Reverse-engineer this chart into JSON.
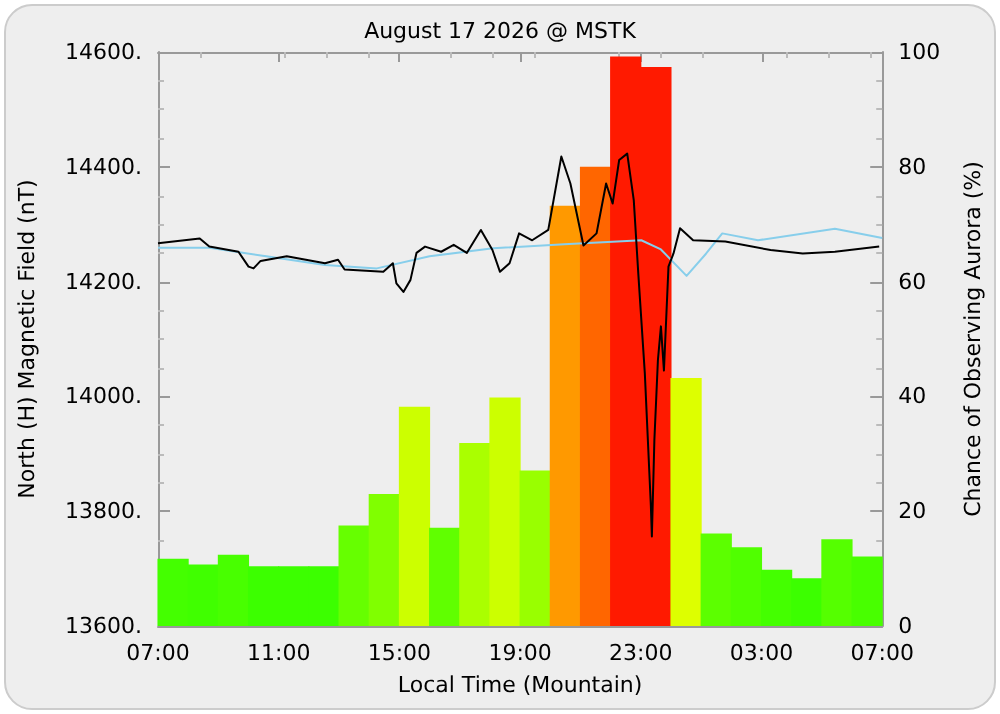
{
  "chart_data": {
    "type": "line",
    "title": "August 17 2026 @ MSTK",
    "xlabel": "Local Time (Mountain)",
    "ylabel": "North (H) Magnetic Field (nT)",
    "y2label": "Chance of Observing Aurora (%)",
    "xlim": [
      "2026-08-17T07:00",
      "2026-08-18T07:00"
    ],
    "xticks": [
      {
        "value": "2026-08-17T07:00",
        "label": "07:00"
      },
      {
        "value": "2026-08-17T11:00",
        "label": "11:00"
      },
      {
        "value": "2026-08-17T15:00",
        "label": "15:00"
      },
      {
        "value": "2026-08-17T19:00",
        "label": "19:00"
      },
      {
        "value": "2026-08-17T23:00",
        "label": "23:00"
      },
      {
        "value": "2026-08-18T03:00",
        "label": "03:00"
      },
      {
        "value": "2026-08-18T07:00",
        "label": "07:00"
      }
    ],
    "ylim": [
      13600,
      14600
    ],
    "yticks": [
      {
        "value": 13600,
        "label": "13600."
      },
      {
        "value": 13800,
        "label": "13800."
      },
      {
        "value": 14000,
        "label": "14000."
      },
      {
        "value": 14200,
        "label": "14200."
      },
      {
        "value": 14400,
        "label": "14400."
      },
      {
        "value": 14600,
        "label": "14600."
      }
    ],
    "y2lim": [
      0,
      100
    ],
    "y2ticks": [
      0,
      20,
      40,
      60,
      80,
      100
    ],
    "grid": false,
    "marker": "none",
    "line_style": "solid",
    "series": [
      {
        "type": "bar",
        "axis": "y2",
        "x": [
          "2026-08-17T07:30",
          "2026-08-17T08:30",
          "2026-08-17T09:30",
          "2026-08-17T10:30",
          "2026-08-17T11:30",
          "2026-08-17T12:30",
          "2026-08-17T13:30",
          "2026-08-17T14:30",
          "2026-08-17T15:30",
          "2026-08-17T16:30",
          "2026-08-17T17:30",
          "2026-08-17T18:30",
          "2026-08-17T19:30",
          "2026-08-17T20:30",
          "2026-08-17T21:30",
          "2026-08-17T22:30",
          "2026-08-17T23:30",
          "2026-08-18T00:30",
          "2026-08-18T01:30",
          "2026-08-18T02:30",
          "2026-08-18T03:30",
          "2026-08-18T04:30",
          "2026-08-18T05:30",
          "2026-08-18T06:30"
        ],
        "values": [
          11.7,
          10.7,
          12.4,
          10.4,
          10.4,
          10.4,
          17.5,
          23,
          38.2,
          17.1,
          31.9,
          39.8,
          27.1,
          73.2,
          80,
          99.2,
          97.4,
          43.2,
          16.1,
          13.7,
          9.8,
          8.3,
          15.1,
          12.1
        ],
        "colors": [
          "#44ff00",
          "#40ff00",
          "#48ff00",
          "#3cff00",
          "#3cff00",
          "#3cff00",
          "#66ff00",
          "#80ff00",
          "#ccff00",
          "#60ff00",
          "#aaff00",
          "#ccff00",
          "#99ff00",
          "#ff9900",
          "#ff6600",
          "#ff1a00",
          "#ff1a00",
          "#ddff00",
          "#5cff00",
          "#50ff00",
          "#44ff00",
          "#3cff00",
          "#55ff00",
          "#48ff00"
        ]
      },
      {
        "color": "#87ceeb",
        "x": [
          "2026-08-17T07:00",
          "2026-08-17T08:42",
          "2026-08-17T12:32",
          "2026-08-17T14:15",
          "2026-08-17T16:00",
          "2026-08-17T18:06",
          "2026-08-17T20:28",
          "2026-08-17T23:01",
          "2026-08-17T23:40",
          "2026-08-18T00:31",
          "2026-08-18T01:10",
          "2026-08-18T01:42",
          "2026-08-18T02:53",
          "2026-08-18T05:26",
          "2026-08-18T07:00"
        ],
        "values": [
          14259,
          14259,
          14229,
          14223,
          14244,
          14258,
          14265,
          14272,
          14256,
          14210,
          14249,
          14284,
          14272,
          14292,
          14276
        ]
      },
      {
        "color": "#000000",
        "x": [
          "2026-08-17T07:00",
          "2026-08-17T08:23",
          "2026-08-17T08:42",
          "2026-08-17T09:40",
          "2026-08-17T10:00",
          "2026-08-17T10:10",
          "2026-08-17T10:24",
          "2026-08-17T11:16",
          "2026-08-17T12:32",
          "2026-08-17T12:58",
          "2026-08-17T13:11",
          "2026-08-17T14:28",
          "2026-08-17T14:47",
          "2026-08-17T14:54",
          "2026-08-17T15:08",
          "2026-08-17T15:22",
          "2026-08-17T15:34",
          "2026-08-17T15:51",
          "2026-08-17T16:23",
          "2026-08-17T16:48",
          "2026-08-17T17:14",
          "2026-08-17T17:42",
          "2026-08-17T18:05",
          "2026-08-17T18:20",
          "2026-08-17T18:39",
          "2026-08-17T18:58",
          "2026-08-17T19:24",
          "2026-08-17T19:56",
          "2026-08-17T20:22",
          "2026-08-17T20:40",
          "2026-08-17T21:06",
          "2026-08-17T21:32",
          "2026-08-17T21:51",
          "2026-08-17T22:04",
          "2026-08-17T22:17",
          "2026-08-17T22:33",
          "2026-08-17T22:46",
          "2026-08-17T22:55",
          "2026-08-17T23:08",
          "2026-08-17T23:20",
          "2026-08-17T23:22",
          "2026-08-17T23:27",
          "2026-08-17T23:34",
          "2026-08-17T23:40",
          "2026-08-17T23:46",
          "2026-08-17T23:55",
          "2026-08-18T00:05",
          "2026-08-18T00:18",
          "2026-08-18T00:44",
          "2026-08-18T01:48",
          "2026-08-18T03:18",
          "2026-08-18T04:22",
          "2026-08-18T05:26",
          "2026-08-18T06:54"
        ],
        "values": [
          14267,
          14275,
          14261,
          14252,
          14226,
          14223,
          14236,
          14244,
          14232,
          14238,
          14221,
          14217,
          14232,
          14197,
          14182,
          14203,
          14250,
          14261,
          14252,
          14264,
          14250,
          14290,
          14255,
          14217,
          14232,
          14284,
          14272,
          14290,
          14418,
          14371,
          14263,
          14284,
          14371,
          14336,
          14412,
          14423,
          14342,
          14214,
          14040,
          13809,
          13756,
          13924,
          14063,
          14122,
          14045,
          14226,
          14249,
          14293,
          14272,
          14270,
          14255,
          14249,
          14252,
          14261
        ]
      }
    ]
  }
}
